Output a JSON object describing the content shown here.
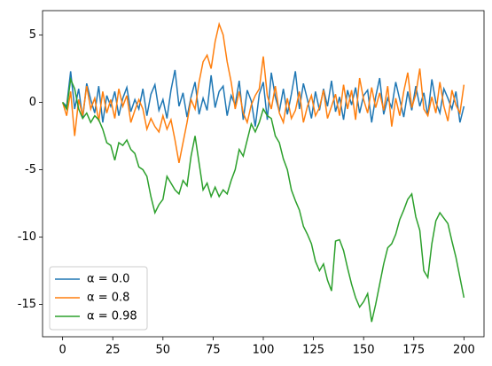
{
  "chart_data": {
    "type": "line",
    "x": [
      0,
      2,
      4,
      6,
      8,
      10,
      12,
      14,
      16,
      18,
      20,
      22,
      24,
      26,
      28,
      30,
      32,
      34,
      36,
      38,
      40,
      42,
      44,
      46,
      48,
      50,
      52,
      54,
      56,
      58,
      60,
      62,
      64,
      66,
      68,
      70,
      72,
      74,
      76,
      78,
      80,
      82,
      84,
      86,
      88,
      90,
      92,
      94,
      96,
      98,
      100,
      102,
      104,
      106,
      108,
      110,
      112,
      114,
      116,
      118,
      120,
      122,
      124,
      126,
      128,
      130,
      132,
      134,
      136,
      138,
      140,
      142,
      144,
      146,
      148,
      150,
      152,
      154,
      156,
      158,
      160,
      162,
      164,
      166,
      168,
      170,
      172,
      174,
      176,
      178,
      180,
      182,
      184,
      186,
      188,
      190,
      192,
      194,
      196,
      198,
      200
    ],
    "series": [
      {
        "name": "α = 0.0",
        "color": "#1f77b4",
        "values": [
          0,
          -0.3,
          2.3,
          -0.5,
          1.0,
          -1.2,
          1.4,
          0.2,
          -0.8,
          1.2,
          -1.5,
          0.5,
          -0.3,
          0.8,
          -1.0,
          0.3,
          1.1,
          -0.7,
          0.2,
          -0.5,
          1.0,
          -1.0,
          0.6,
          1.3,
          -0.6,
          0.2,
          -1.2,
          0.9,
          2.4,
          -0.3,
          0.7,
          -1.1,
          0.4,
          1.5,
          -0.9,
          0.3,
          -0.6,
          2.0,
          -0.4,
          0.8,
          1.2,
          -1.0,
          0.5,
          -0.2,
          1.6,
          -1.3,
          0.9,
          0.1,
          -1.8,
          0.6,
          1.5,
          -1.3,
          2.2,
          0.4,
          -0.7,
          1.0,
          -0.9,
          0.6,
          2.3,
          -0.5,
          1.4,
          0.2,
          -1.2,
          0.8,
          -0.6,
          1.0,
          -0.3,
          1.6,
          -0.7,
          0.4,
          -1.3,
          0.9,
          -0.2,
          1.1,
          -0.8,
          0.5,
          0.9,
          -1.5,
          0.4,
          1.8,
          -0.9,
          0.3,
          -0.4,
          1.5,
          0.2,
          -1.1,
          0.8,
          -0.6,
          1.2,
          -0.3,
          0.7,
          -1.0,
          1.7,
          0.0,
          -0.8,
          1.0,
          0.3,
          -0.5,
          0.8,
          -1.5,
          -0.3
        ]
      },
      {
        "name": "α = 0.8",
        "color": "#ff7f0e",
        "values": [
          0,
          -1.0,
          0.8,
          -2.5,
          0.2,
          -1.0,
          1.2,
          -0.5,
          0.3,
          -1.4,
          0.8,
          -0.8,
          0.2,
          -1.2,
          1.0,
          -0.3,
          0.5,
          -1.5,
          -0.6,
          0.2,
          -0.5,
          -2.0,
          -1.2,
          -1.8,
          -2.2,
          -1.0,
          -2.0,
          -1.3,
          -2.8,
          -4.5,
          -3.0,
          -1.5,
          0.2,
          -0.5,
          1.5,
          3.0,
          3.5,
          2.5,
          4.5,
          5.8,
          5.0,
          3.0,
          1.5,
          -0.5,
          0.8,
          -0.8,
          -1.5,
          -0.2,
          0.5,
          1.0,
          3.4,
          0.5,
          -0.5,
          1.2,
          -0.8,
          -1.5,
          0.3,
          -1.2,
          -0.6,
          0.8,
          -1.5,
          -0.3,
          0.5,
          -1.0,
          -0.4,
          0.9,
          -1.2,
          -0.3,
          0.6,
          -1.0,
          1.3,
          -0.5,
          0.9,
          -1.3,
          1.8,
          0.2,
          -0.8,
          1.1,
          -0.4,
          0.7,
          -0.6,
          1.2,
          -1.8,
          0.3,
          -1.0,
          0.8,
          2.2,
          -0.4,
          0.6,
          2.5,
          -0.5,
          -1.0,
          0.4,
          -0.8,
          1.5,
          -0.3,
          -1.4,
          0.9,
          -0.2,
          -0.8,
          1.3
        ]
      },
      {
        "name": "α = 0.98",
        "color": "#2ca02c",
        "values": [
          0,
          -0.5,
          1.7,
          1.0,
          -0.5,
          -1.2,
          -0.8,
          -1.5,
          -1.0,
          -1.3,
          -2.0,
          -3.0,
          -3.2,
          -4.3,
          -3.0,
          -3.2,
          -2.8,
          -3.5,
          -3.8,
          -4.8,
          -5.0,
          -5.5,
          -7.0,
          -8.2,
          -7.6,
          -7.2,
          -5.5,
          -6.0,
          -6.5,
          -6.8,
          -5.8,
          -6.2,
          -4.0,
          -2.5,
          -4.5,
          -6.5,
          -6.0,
          -7.0,
          -6.3,
          -7.0,
          -6.5,
          -6.8,
          -5.8,
          -5.0,
          -3.5,
          -4.0,
          -2.8,
          -1.6,
          -2.2,
          -1.5,
          -0.5,
          -1.0,
          -1.2,
          -2.5,
          -3.0,
          -4.2,
          -5.0,
          -6.5,
          -7.3,
          -8.0,
          -9.2,
          -9.8,
          -10.5,
          -11.8,
          -12.5,
          -12.0,
          -13.2,
          -14.0,
          -10.3,
          -10.2,
          -11.0,
          -12.3,
          -13.5,
          -14.5,
          -15.2,
          -14.8,
          -14.2,
          -16.3,
          -15.0,
          -13.5,
          -12.0,
          -10.8,
          -10.5,
          -9.8,
          -8.7,
          -8.0,
          -7.2,
          -6.8,
          -8.5,
          -9.5,
          -12.5,
          -13.0,
          -10.5,
          -8.8,
          -8.2,
          -8.6,
          -9.0,
          -10.3,
          -11.5,
          -13.0,
          -14.5
        ]
      }
    ],
    "xlim": [
      -10,
      210
    ],
    "ylim": [
      -17.4,
      6.8
    ],
    "xticks": [
      0,
      25,
      50,
      75,
      100,
      125,
      150,
      175,
      200
    ],
    "yticks": [
      -15,
      -10,
      -5,
      0,
      5
    ],
    "legend": "lower left"
  }
}
